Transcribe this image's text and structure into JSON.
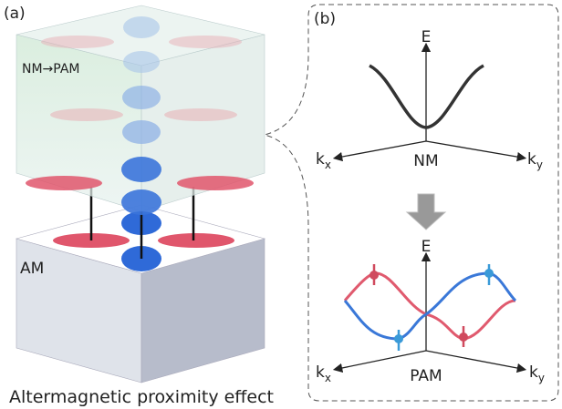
{
  "panel_a": {
    "label": "(a)",
    "upper_block": "NM→PAM",
    "lower_block": "AM",
    "caption": "Altermagnetic proximity effect"
  },
  "panel_b": {
    "label": "(b)",
    "top": {
      "energy_axis": "E",
      "kx_axis": {
        "base": "k",
        "sub": "x"
      },
      "ky_axis": {
        "base": "k",
        "sub": "y"
      },
      "name": "NM"
    },
    "bottom": {
      "energy_axis": "E",
      "kx_axis": {
        "base": "k",
        "sub": "x"
      },
      "ky_axis": {
        "base": "k",
        "sub": "y"
      },
      "name": "PAM"
    }
  }
}
